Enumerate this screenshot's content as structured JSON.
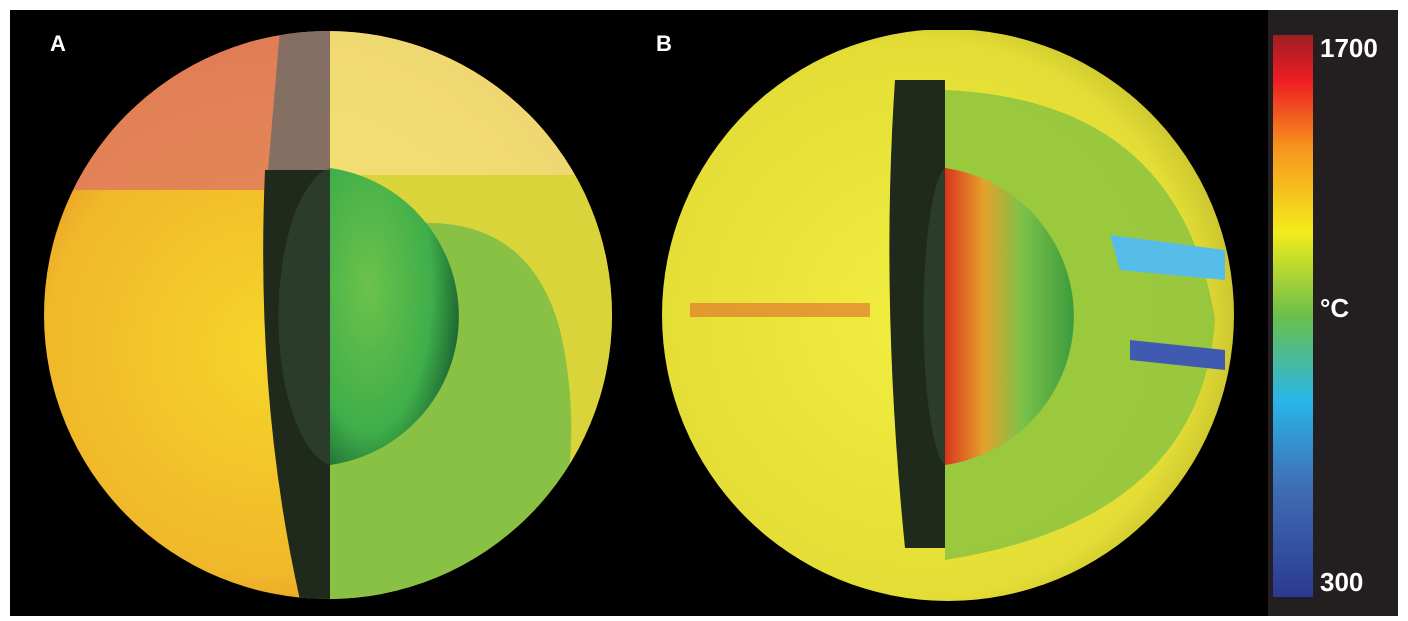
{
  "panels": [
    {
      "label": "A"
    },
    {
      "label": "B"
    }
  ],
  "colorbar": {
    "max_label": "1700",
    "unit_label": "°C",
    "min_label": "300"
  }
}
